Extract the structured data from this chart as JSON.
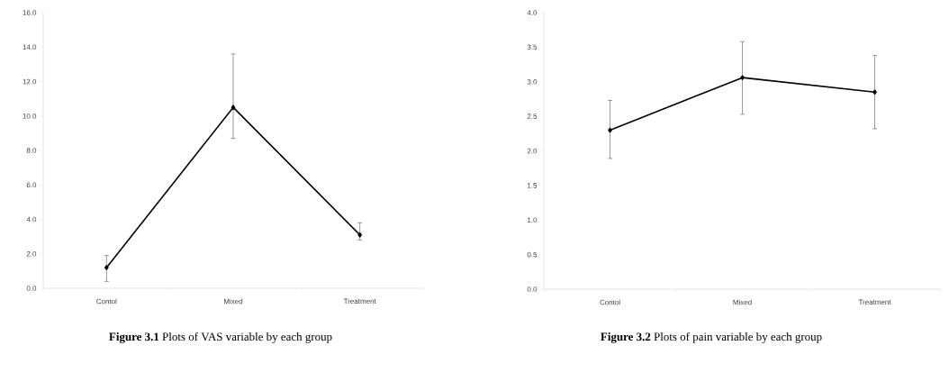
{
  "chart_data": [
    {
      "type": "line",
      "categories": [
        "Contol",
        "Mixed",
        "Treatment"
      ],
      "series": [
        {
          "color": "#000000",
          "values": [
            1.2,
            10.5,
            3.1
          ],
          "errors": [
            [
              0.4,
              1.9
            ],
            [
              8.7,
              13.6
            ],
            [
              2.8,
              3.8
            ]
          ]
        }
      ],
      "ylim": [
        0,
        16
      ],
      "yticks": [
        {
          "value": 0,
          "label": "0.0"
        },
        {
          "value": 2,
          "label": "2.0"
        },
        {
          "value": 4,
          "label": "4.0"
        },
        {
          "value": 6,
          "label": "6.0"
        },
        {
          "value": 8,
          "label": "8.0"
        },
        {
          "value": 10,
          "label": "10.0"
        },
        {
          "value": 12,
          "label": "12.0"
        },
        {
          "value": 14,
          "label": "14.0"
        },
        {
          "value": 16,
          "label": "16.0"
        }
      ],
      "marker": "diamond",
      "line_style": "solid",
      "grid": false,
      "annotations": [
        "**Figure 3.1** Plots of VAS variable by each group"
      ]
    },
    {
      "type": "line",
      "categories": [
        "Contol",
        "Mixed",
        "Treatment"
      ],
      "series": [
        {
          "color": "#000000",
          "values": [
            2.3,
            3.06,
            2.85
          ],
          "errors": [
            [
              1.89,
              2.73
            ],
            [
              2.53,
              3.58
            ],
            [
              2.32,
              3.38
            ]
          ]
        }
      ],
      "ylim": [
        0,
        4
      ],
      "yticks": [
        {
          "value": 0,
          "label": "0.0"
        },
        {
          "value": 0.5,
          "label": "0.5"
        },
        {
          "value": 1,
          "label": "1.0"
        },
        {
          "value": 1.5,
          "label": "1.5"
        },
        {
          "value": 2,
          "label": "2.0"
        },
        {
          "value": 2.5,
          "label": "2.5"
        },
        {
          "value": 3,
          "label": "3.0"
        },
        {
          "value": 3.5,
          "label": "3.5"
        },
        {
          "value": 4,
          "label": "4.0"
        }
      ],
      "marker": "diamond",
      "line_style": "solid",
      "grid": false,
      "annotations": [
        "**Figure 3.2** Plots of pain variable by each group"
      ]
    }
  ]
}
